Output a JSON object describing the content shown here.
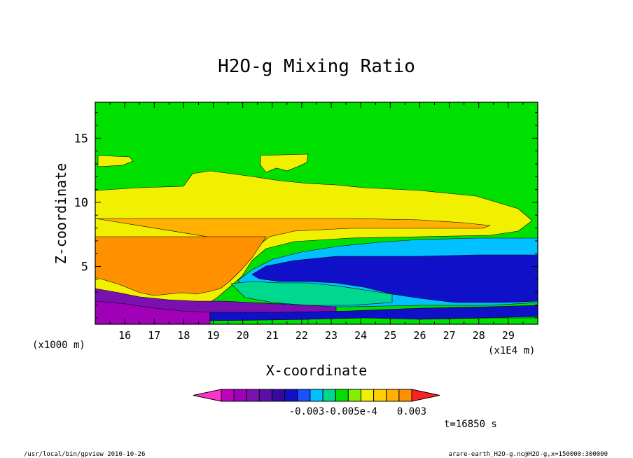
{
  "chart_data": {
    "type": "heatmap",
    "title": "H2O-g Mixing Ratio",
    "xlabel": "X-coordinate",
    "ylabel": "Z-coordinate",
    "x_unit_left": "(x1000 m)",
    "x_unit_right": "(x1E4 m)",
    "xlim": [
      15.0,
      30.0
    ],
    "ylim": [
      0.5,
      17.8
    ],
    "x_ticks": [
      "16",
      "17",
      "18",
      "19",
      "20",
      "21",
      "22",
      "23",
      "24",
      "25",
      "26",
      "27",
      "28",
      "29"
    ],
    "y_ticks": [
      "5",
      "10",
      "15"
    ],
    "colorbar": {
      "labels": [
        "-0.003",
        "-0.005e-4",
        "0.003"
      ],
      "colors": [
        "#ff33cc",
        "#c000c0",
        "#a000b8",
        "#7a10b0",
        "#5a10a8",
        "#3a08a0",
        "#1010c8",
        "#1a50ff",
        "#00c0ff",
        "#00d890",
        "#00e000",
        "#80f000",
        "#f0f000",
        "#ffd000",
        "#ffb000",
        "#ff9000",
        "#ff2020"
      ]
    },
    "time_label": "t=16850 s",
    "regions": [
      {
        "name": "green background",
        "level": "0.0"
      },
      {
        "name": "yellow layer",
        "level": "+"
      },
      {
        "name": "orange core",
        "level": "++"
      },
      {
        "name": "blue moist band",
        "level": "-"
      },
      {
        "name": "purple near-surface",
        "level": "--"
      }
    ]
  },
  "footer": {
    "left": "/usr/local/bin/gpview  2010-10-26",
    "right": "arare-earth_H2O-g.nc@H2O-g,x=150000:300000"
  }
}
